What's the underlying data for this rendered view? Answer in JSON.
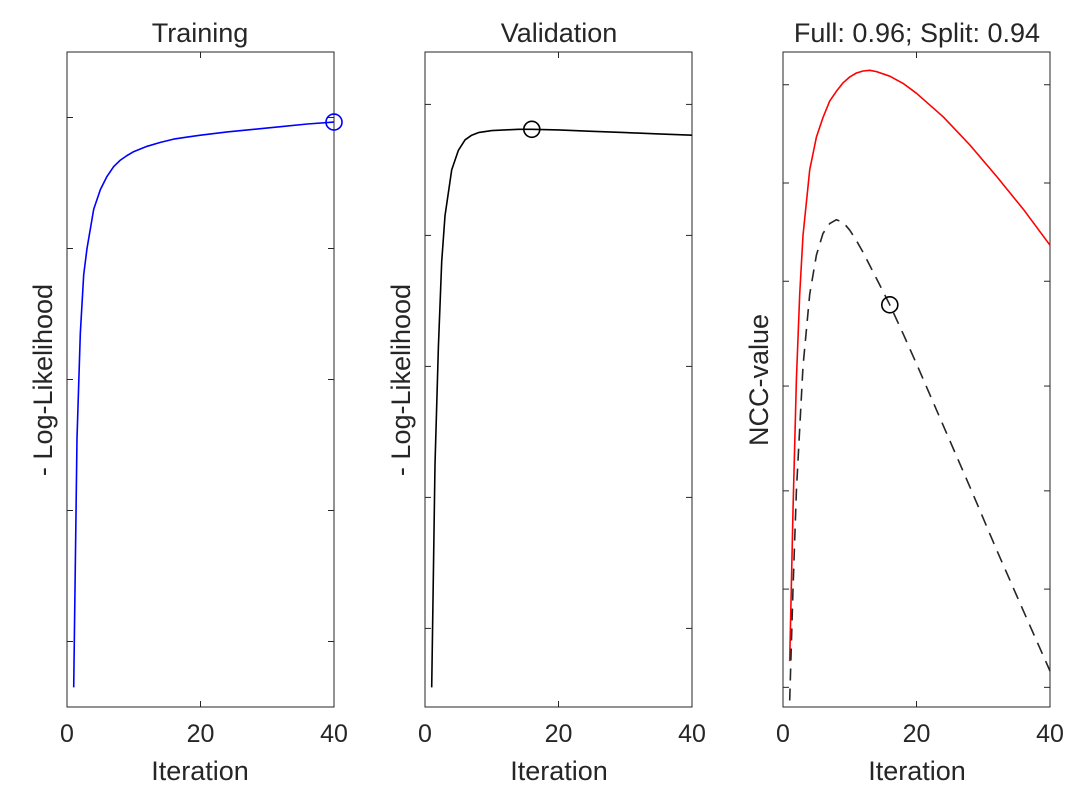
{
  "chart_data": [
    {
      "type": "line",
      "title": "Training",
      "xlabel": "Iteration",
      "ylabel": "- Log-Likelihood",
      "xlim": [
        0,
        40
      ],
      "ylim": [
        0,
        1
      ],
      "xticks": [
        0,
        20,
        40
      ],
      "xtick_labels": [
        "0",
        "20",
        "40"
      ],
      "yticks": [
        0.1,
        0.3,
        0.5,
        0.7,
        0.9
      ],
      "ytick_labels": [
        "",
        "",
        "",
        "",
        ""
      ],
      "y_note": "y tick labels not shown; y values normalized to axis range (0 = bottom, 1 = top)",
      "grid": false,
      "series": [
        {
          "color": "#0000ff",
          "linestyle": "solid",
          "x": [
            1,
            1.5,
            2,
            2.5,
            3,
            4,
            5,
            6,
            7,
            8,
            9,
            10,
            12,
            14,
            16,
            18,
            20,
            24,
            28,
            32,
            36,
            40
          ],
          "y": [
            0.03,
            0.41,
            0.57,
            0.66,
            0.7,
            0.76,
            0.79,
            0.81,
            0.825,
            0.835,
            0.842,
            0.848,
            0.856,
            0.862,
            0.867,
            0.87,
            0.873,
            0.878,
            0.882,
            0.886,
            0.89,
            0.893
          ],
          "marker": {
            "x": 40,
            "y": 0.893,
            "color": "#0000ff"
          }
        }
      ]
    },
    {
      "type": "line",
      "title": "Validation",
      "xlabel": "Iteration",
      "ylabel": "- Log-Likelihood",
      "xlim": [
        0,
        40
      ],
      "ylim": [
        0,
        1
      ],
      "xticks": [
        0,
        20,
        40
      ],
      "xtick_labels": [
        "0",
        "20",
        "40"
      ],
      "yticks": [
        0.12,
        0.32,
        0.52,
        0.72,
        0.92
      ],
      "ytick_labels": [
        "",
        "",
        "",
        "",
        ""
      ],
      "y_note": "y tick labels not shown; y values normalized to axis range (0 = bottom, 1 = top)",
      "grid": false,
      "series": [
        {
          "color": "#000000",
          "linestyle": "solid",
          "x": [
            1,
            1.5,
            2,
            2.5,
            3,
            4,
            5,
            6,
            7,
            8,
            10,
            12,
            14,
            16,
            20,
            25,
            30,
            35,
            40
          ],
          "y": [
            0.03,
            0.37,
            0.55,
            0.68,
            0.75,
            0.82,
            0.85,
            0.866,
            0.873,
            0.877,
            0.88,
            0.881,
            0.882,
            0.882,
            0.881,
            0.879,
            0.877,
            0.875,
            0.873
          ],
          "marker": {
            "x": 16,
            "y": 0.882,
            "color": "#000000"
          }
        }
      ]
    },
    {
      "type": "line",
      "title": "Full: 0.96; Split: 0.94",
      "xlabel": "Iteration",
      "ylabel": "NCC-value",
      "xlim": [
        0,
        40
      ],
      "ylim": [
        0,
        1
      ],
      "xticks": [
        0,
        20,
        40
      ],
      "xtick_labels": [
        "0",
        "20",
        "40"
      ],
      "yticks": [
        0.03,
        0.18,
        0.33,
        0.49,
        0.65,
        0.8,
        0.95
      ],
      "ytick_labels": [
        "",
        "",
        "",
        "",
        "",
        "",
        ""
      ],
      "y_note": "y tick labels not shown; y values normalized to axis range (0 = bottom, 1 = top)",
      "grid": false,
      "series": [
        {
          "color": "#ff0000",
          "linestyle": "solid",
          "x": [
            1,
            1.5,
            2,
            2.5,
            3,
            4,
            5,
            6,
            7,
            8,
            9,
            10,
            11,
            12,
            13,
            14,
            16,
            18,
            20,
            24,
            28,
            32,
            36,
            40
          ],
          "y": [
            0.07,
            0.3,
            0.5,
            0.63,
            0.72,
            0.82,
            0.87,
            0.9,
            0.925,
            0.94,
            0.953,
            0.962,
            0.968,
            0.971,
            0.972,
            0.97,
            0.963,
            0.952,
            0.937,
            0.901,
            0.858,
            0.81,
            0.76,
            0.705
          ]
        },
        {
          "color": "#262626",
          "linestyle": "dashed",
          "x": [
            1,
            1.5,
            2,
            3,
            4,
            5,
            6,
            7,
            8,
            9,
            10,
            11,
            12,
            13,
            14,
            16,
            18,
            20,
            24,
            28,
            32,
            36,
            40
          ],
          "y": [
            0.01,
            0.18,
            0.33,
            0.52,
            0.63,
            0.69,
            0.723,
            0.738,
            0.744,
            0.74,
            0.728,
            0.712,
            0.694,
            0.674,
            0.654,
            0.614,
            0.57,
            0.524,
            0.43,
            0.336,
            0.24,
            0.147,
            0.055
          ],
          "marker": {
            "x": 16,
            "y": 0.614,
            "color": "#000000"
          }
        }
      ]
    }
  ]
}
